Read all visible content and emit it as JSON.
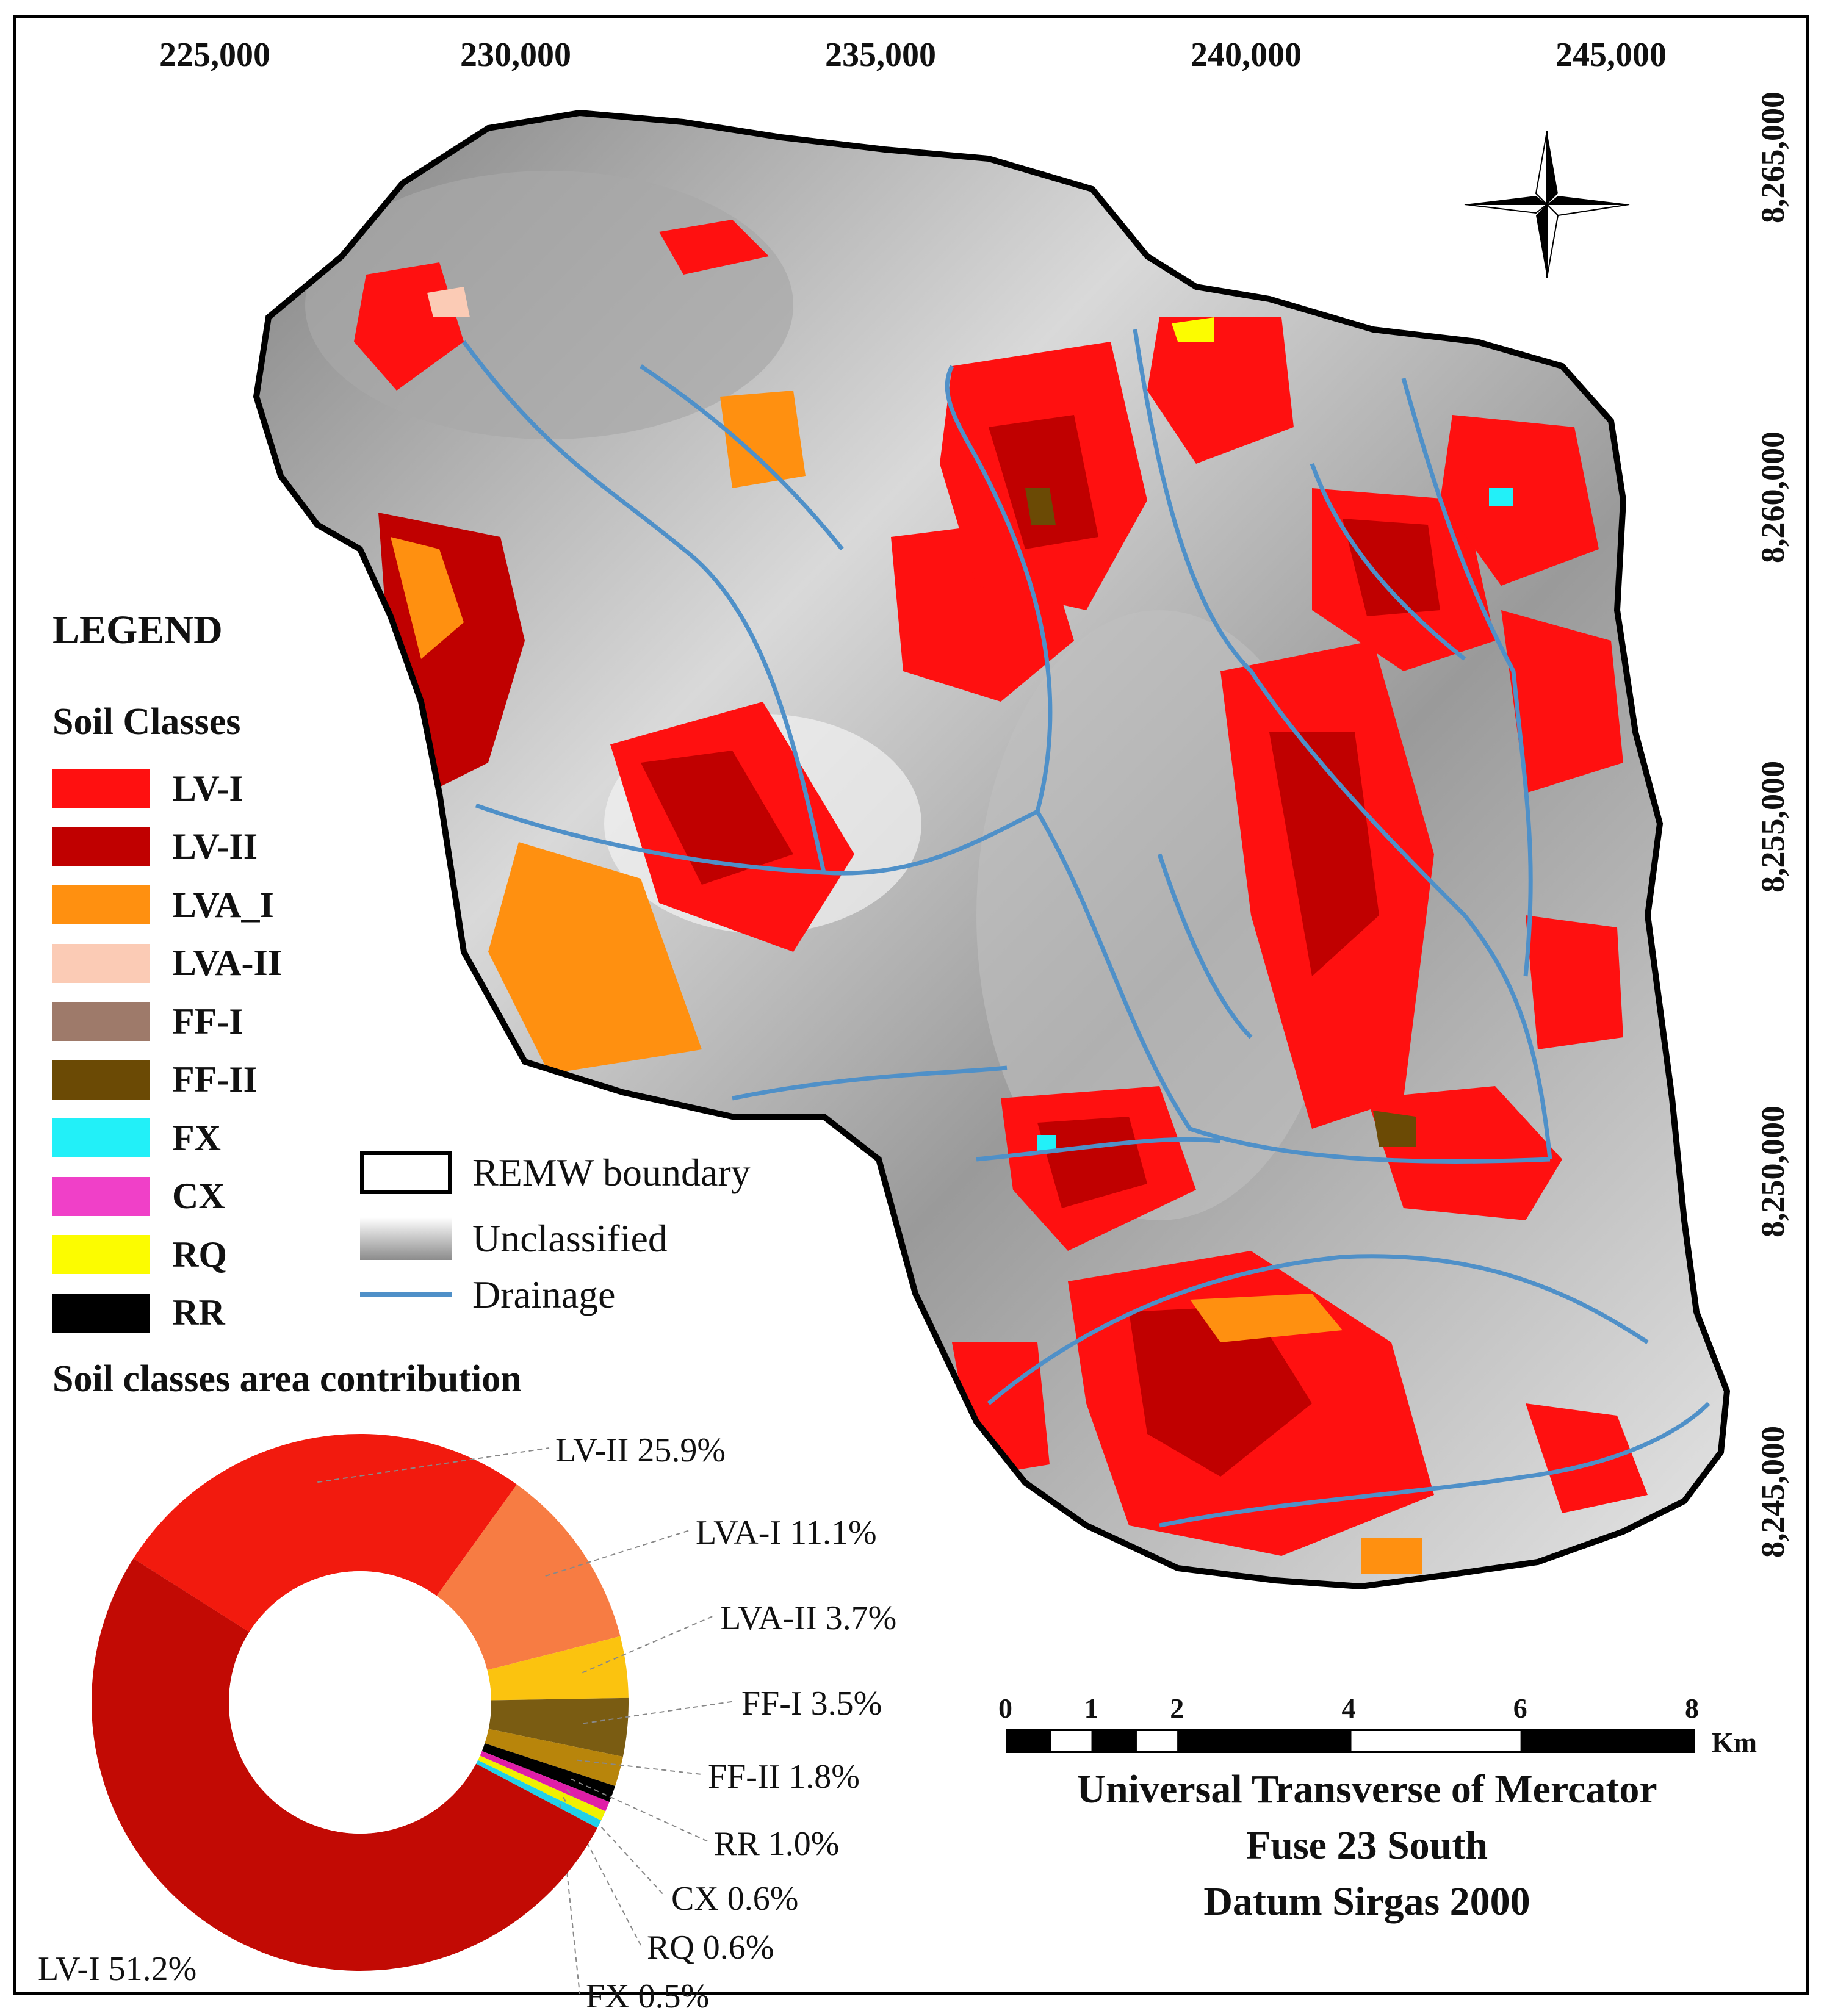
{
  "map": {
    "top_coordinates": [
      "225,000",
      "230,000",
      "235,000",
      "240,000",
      "245,000"
    ],
    "right_coordinates": [
      "8,265,000",
      "8,260,000",
      "8,255,000",
      "8,250,000",
      "8,245,000"
    ],
    "north_arrow_icon": "compass-rose-icon",
    "colors": {
      "hillshade_light": "#e6e6e6",
      "hillshade_dark": "#8a8a8a",
      "drainage": "#4f90c8",
      "boundary": "#000000"
    }
  },
  "legend": {
    "title": "LEGEND",
    "soil_title": "Soil Classes",
    "soil_classes": [
      {
        "label": "LV-I",
        "color": "#ff1010"
      },
      {
        "label": "LV-II",
        "color": "#c00000"
      },
      {
        "label": "LVA_I",
        "color": "#ff9010"
      },
      {
        "label": "LVA-II",
        "color": "#fbcbb5"
      },
      {
        "label": "FF-I",
        "color": "#9e7a6a"
      },
      {
        "label": "FF-II",
        "color": "#6b4a05"
      },
      {
        "label": "FX",
        "color": "#22f0f8"
      },
      {
        "label": "CX",
        "color": "#f040c8"
      },
      {
        "label": "RQ",
        "color": "#fcfc00"
      },
      {
        "label": "RR",
        "color": "#000000"
      }
    ],
    "other": [
      {
        "label": "REMW boundary",
        "icon": "boundary-box-icon"
      },
      {
        "label": "Unclassified",
        "icon": "gray-gradient-swatch"
      },
      {
        "label": "Drainage",
        "icon": "blue-line-icon"
      }
    ]
  },
  "pie": {
    "title": "Soil classes area contribution",
    "slices": [
      {
        "label": "LV-II 25.9%",
        "value": 25.9,
        "color": "#f21a0e"
      },
      {
        "label": "LVA-I 11.1%",
        "value": 11.1,
        "color": "#f77c43"
      },
      {
        "label": "LVA-II 3.7%",
        "value": 3.7,
        "color": "#fbc30f"
      },
      {
        "label": "FF-I 3.5%",
        "value": 3.5,
        "color": "#7a5c12"
      },
      {
        "label": "FF-II 1.8%",
        "value": 1.8,
        "color": "#b8850b"
      },
      {
        "label": "RR 1.0%",
        "value": 1.0,
        "color": "#000000"
      },
      {
        "label": "CX 0.6%",
        "value": 0.6,
        "color": "#e01ea8"
      },
      {
        "label": "RQ 0.6%",
        "value": 0.6,
        "color": "#f0f000"
      },
      {
        "label": "FX 0.5%",
        "value": 0.5,
        "color": "#20d0e8"
      },
      {
        "label": "LV-I 51.2%",
        "value": 51.2,
        "color": "#c20a04"
      }
    ]
  },
  "scale": {
    "ticks": [
      "0",
      "1",
      "2",
      "4",
      "6",
      "8"
    ],
    "unit": "Km"
  },
  "projection": {
    "line1": "Universal Transverse of Mercator",
    "line2": "Fuse 23 South",
    "line3": "Datum Sirgas 2000"
  }
}
